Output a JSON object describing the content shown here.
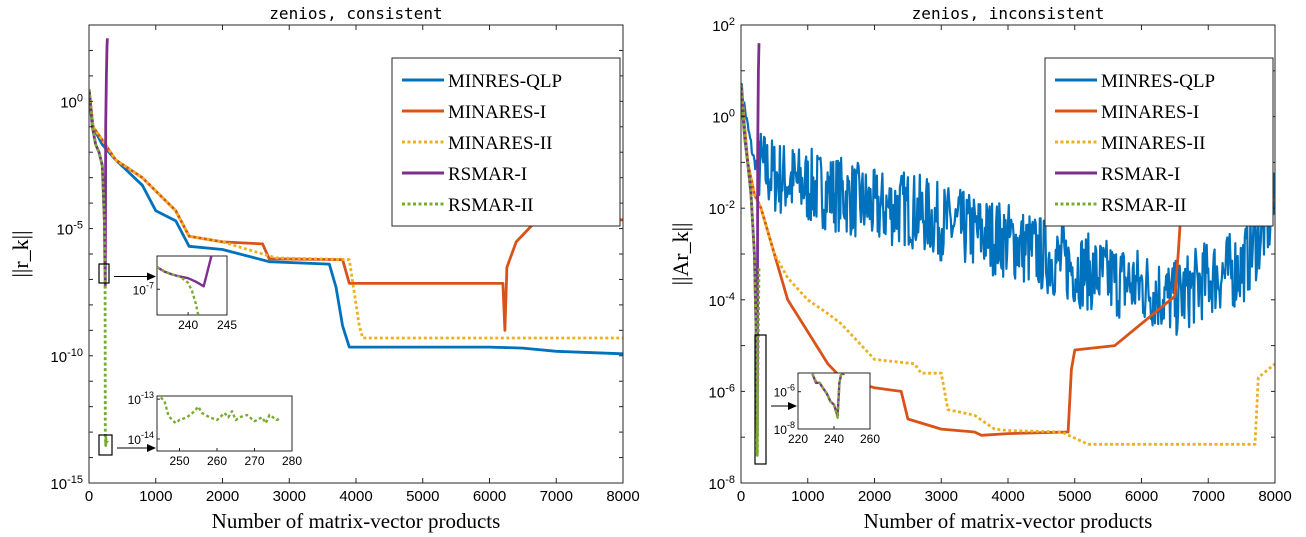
{
  "chart_data": [
    {
      "type": "line",
      "title": "zenios, consistent",
      "xlabel": "Number of matrix-vector products",
      "ylabel": "||r_k||",
      "xlim": [
        0,
        8000
      ],
      "ylim": [
        1e-15,
        1000
      ],
      "yscale": "log",
      "xticks": [
        "0",
        "1000",
        "2000",
        "3000",
        "4000",
        "5000",
        "6000",
        "7000",
        "8000"
      ],
      "yticks": [
        "10^0",
        "10^-5",
        "10^-10",
        "10^-15"
      ],
      "legend": "top-right",
      "series": [
        {
          "name": "MINRES-QLP",
          "color": "#0072BD",
          "style": "solid",
          "x": [
            0,
            60,
            200,
            400,
            800,
            1000,
            1300,
            1500,
            2000,
            2700,
            3600,
            3700,
            3800,
            3900,
            4000,
            6000,
            6500,
            7000,
            8000
          ],
          "y": [
            3,
            0.1,
            0.02,
            0.005,
            0.0005,
            5e-05,
            2e-05,
            2e-06,
            1.5e-06,
            5e-07,
            4e-07,
            5e-08,
            1.5e-09,
            2.2e-10,
            2.2e-10,
            2.2e-10,
            2e-10,
            1.5e-10,
            1.2e-10
          ]
        },
        {
          "name": "MINARES-I",
          "color": "#D95319",
          "style": "solid",
          "x": [
            0,
            60,
            200,
            400,
            800,
            1000,
            1300,
            1500,
            2000,
            2600,
            2700,
            3800,
            3900,
            6200,
            6230,
            6260,
            6400,
            6700,
            8000
          ],
          "y": [
            3,
            0.1,
            0.03,
            0.005,
            0.001,
            0.0003,
            5e-05,
            5e-06,
            3e-06,
            2.5e-06,
            6.5e-07,
            6e-07,
            7e-08,
            7e-08,
            1e-09,
            3e-07,
            3e-06,
            2e-05,
            2.2e-05
          ]
        },
        {
          "name": "MINARES-II",
          "color": "#EDB120",
          "style": "dotted",
          "x": [
            0,
            60,
            200,
            400,
            800,
            1000,
            1300,
            1500,
            2000,
            2800,
            3900,
            4050,
            4100,
            6600,
            6700,
            8000
          ],
          "y": [
            3,
            0.1,
            0.03,
            0.005,
            0.001,
            0.0003,
            5e-05,
            5e-06,
            3e-06,
            7e-07,
            6e-07,
            1.5e-09,
            5e-10,
            5e-10,
            5e-10,
            5e-10
          ]
        },
        {
          "name": "RSMAR-I",
          "color": "#7E2F8E",
          "style": "solid",
          "x": [
            0,
            50,
            100,
            150,
            200,
            230,
            238,
            243,
            244,
            250,
            260,
            270,
            275
          ],
          "y": [
            3,
            0.1,
            0.02,
            0.01,
            0.003,
            2e-05,
            3e-07,
            1e-07,
            5e-08,
            0.1,
            10,
            150,
            300
          ]
        },
        {
          "name": "RSMAR-II",
          "color": "#77AC30",
          "style": "dotted",
          "x": [
            0,
            50,
            100,
            150,
            200,
            230,
            238,
            241,
            244,
            250,
            255,
            260,
            270,
            277
          ],
          "y": [
            3,
            0.1,
            0.02,
            0.01,
            0.003,
            2e-05,
            3e-07,
            6e-08,
            1e-13,
            3e-14,
            6e-14,
            4e-14,
            5e-14,
            4e-14
          ]
        }
      ],
      "insets": [
        {
          "xlim": [
            236,
            245
          ],
          "ylim": [
            2e-08,
            8e-07
          ],
          "xticks": [
            "240",
            "245"
          ],
          "yticks": [
            "10^-7"
          ],
          "series": [
            {
              "name": "RSMAR-I",
              "color": "#7E2F8E",
              "style": "solid",
              "x": [
                236,
                237,
                238,
                239,
                240,
                241,
                242,
                243
              ],
              "y": [
                4e-07,
                3e-07,
                2.5e-07,
                2.2e-07,
                2e-07,
                1.6e-07,
                1.2e-07,
                8e-07
              ]
            },
            {
              "name": "RSMAR-II",
              "color": "#77AC30",
              "style": "dotted",
              "x": [
                236,
                237,
                238,
                239,
                240,
                240.5,
                241,
                241.3
              ],
              "y": [
                4e-07,
                3e-07,
                2.5e-07,
                2.2e-07,
                1.5e-07,
                9e-08,
                4e-08,
                2e-08
              ]
            }
          ]
        },
        {
          "xlim": [
            244,
            280
          ],
          "ylim": [
            5e-15,
            1.2e-13
          ],
          "xticks": [
            "250",
            "260",
            "270",
            "280"
          ],
          "yticks": [
            "10^-13",
            "10^-14"
          ],
          "series": [
            {
              "name": "RSMAR-II",
              "color": "#77AC30",
              "style": "dotted",
              "x": [
                245,
                246,
                247,
                248,
                249,
                250,
                252,
                254,
                255,
                256,
                258,
                260,
                262,
                263,
                264,
                265,
                266,
                268,
                270,
                272,
                273,
                274,
                276,
                277
              ],
              "y": [
                1.1e-13,
                9e-14,
                4e-14,
                3e-14,
                2.5e-14,
                3e-14,
                3.5e-14,
                5e-14,
                6.5e-14,
                4.5e-14,
                3.5e-14,
                3e-14,
                4.5e-14,
                3.5e-14,
                5e-14,
                3e-14,
                3.5e-14,
                4e-14,
                2.8e-14,
                3.5e-14,
                2.5e-14,
                4e-14,
                3e-14,
                3.5e-14
              ]
            }
          ]
        }
      ]
    },
    {
      "type": "line",
      "title": "zenios, inconsistent",
      "xlabel": "Number of matrix-vector products",
      "ylabel": "||Ar_k||",
      "xlim": [
        0,
        8000
      ],
      "ylim": [
        1e-08,
        100
      ],
      "yscale": "log",
      "xticks": [
        "0",
        "1000",
        "2000",
        "3000",
        "4000",
        "5000",
        "6000",
        "7000",
        "8000"
      ],
      "yticks": [
        "10^2",
        "10^0",
        "10^-2",
        "10^-4",
        "10^-6",
        "10^-8"
      ],
      "legend": "top-right",
      "series": [
        {
          "name": "MINRES-QLP",
          "color": "#0072BD",
          "style": "solid",
          "noisy": true,
          "x": [
            0,
            100,
            200,
            500,
            1000,
            1500,
            2000,
            2500,
            3000,
            3500,
            4000,
            4500,
            5000,
            5500,
            6000,
            6500,
            7000,
            7500,
            7800,
            8000
          ],
          "y": [
            5,
            0.6,
            0.1,
            0.05,
            0.03,
            0.02,
            0.01,
            0.01,
            0.005,
            0.003,
            0.002,
            0.001,
            0.0005,
            0.0003,
            0.0002,
            0.0001,
            0.0003,
            0.0005,
            0.003,
            0.01
          ]
        },
        {
          "name": "MINARES-I",
          "color": "#D95319",
          "style": "solid",
          "x": [
            0,
            100,
            200,
            300,
            500,
            700,
            1000,
            1300,
            1500,
            2000,
            2400,
            2500,
            3000,
            3500,
            3600,
            4000,
            4900,
            4950,
            5000,
            5600,
            6500,
            6550,
            6600,
            8000
          ],
          "y": [
            5,
            0.1,
            0.02,
            0.01,
            0.001,
            0.0001,
            2e-05,
            4e-06,
            2e-06,
            1.2e-06,
            1e-06,
            2.5e-07,
            1.5e-07,
            1.3e-07,
            1.1e-07,
            1.2e-07,
            1.3e-07,
            3e-06,
            8e-06,
            1e-05,
            0.00012,
            0.001,
            0.013,
            0.015
          ]
        },
        {
          "name": "MINARES-II",
          "color": "#EDB120",
          "style": "dotted",
          "x": [
            0,
            100,
            200,
            300,
            500,
            700,
            1000,
            1300,
            1500,
            2000,
            2600,
            2700,
            3000,
            3100,
            3500,
            3800,
            4000,
            4800,
            5200,
            7000,
            7700,
            7750,
            8000
          ],
          "y": [
            5,
            0.1,
            0.02,
            0.01,
            0.001,
            0.0003,
            0.0001,
            5e-05,
            3e-05,
            5e-06,
            4e-06,
            2.5e-06,
            2.5e-06,
            4e-07,
            3e-07,
            1.5e-07,
            1.4e-07,
            1.3e-07,
            7e-08,
            7e-08,
            7e-08,
            2e-06,
            4e-06
          ]
        },
        {
          "name": "RSMAR-I",
          "color": "#7E2F8E",
          "style": "solid",
          "x": [
            0,
            30,
            60,
            100,
            150,
            200,
            230,
            238,
            241,
            244,
            250,
            260,
            270
          ],
          "y": [
            5,
            1,
            0.3,
            0.1,
            0.02,
            0.001,
            1e-05,
            3e-07,
            2e-07,
            1e-07,
            0.2,
            10,
            40
          ]
        },
        {
          "name": "RSMAR-II",
          "color": "#77AC30",
          "style": "dotted",
          "x": [
            0,
            30,
            60,
            100,
            150,
            200,
            230,
            238,
            241,
            243,
            245,
            250,
            260,
            270
          ],
          "y": [
            5,
            1,
            0.3,
            0.1,
            0.02,
            0.001,
            1e-05,
            3e-07,
            1e-07,
            4e-08,
            5e-08,
            1e-06,
            3e-05,
            0.0005
          ]
        }
      ],
      "insets": [
        {
          "xlim": [
            220,
            260
          ],
          "ylim": [
            1e-08,
            1e-05
          ],
          "xticks": [
            "220",
            "240",
            "260"
          ],
          "yticks": [
            "10^-6",
            "10^-8"
          ],
          "series": [
            {
              "name": "RSMAR-I",
              "color": "#7E2F8E",
              "style": "solid",
              "x": [
                228,
                230,
                232,
                234,
                236,
                238,
                240,
                242,
                243,
                244,
                246
              ],
              "y": [
                9e-06,
                3e-06,
                3e-06,
                1.5e-06,
                8e-07,
                3e-07,
                2e-07,
                5e-08,
                3e-06,
                9e-06,
                9e-06
              ]
            },
            {
              "name": "RSMAR-II",
              "color": "#77AC30",
              "style": "dotted",
              "x": [
                228,
                230,
                232,
                234,
                236,
                238,
                240,
                242,
                243,
                244,
                246
              ],
              "y": [
                9e-06,
                3.5e-06,
                3e-06,
                1.5e-06,
                8e-07,
                3e-07,
                2e-07,
                4e-08,
                3e-06,
                9e-06,
                9e-06
              ]
            }
          ]
        }
      ]
    }
  ]
}
